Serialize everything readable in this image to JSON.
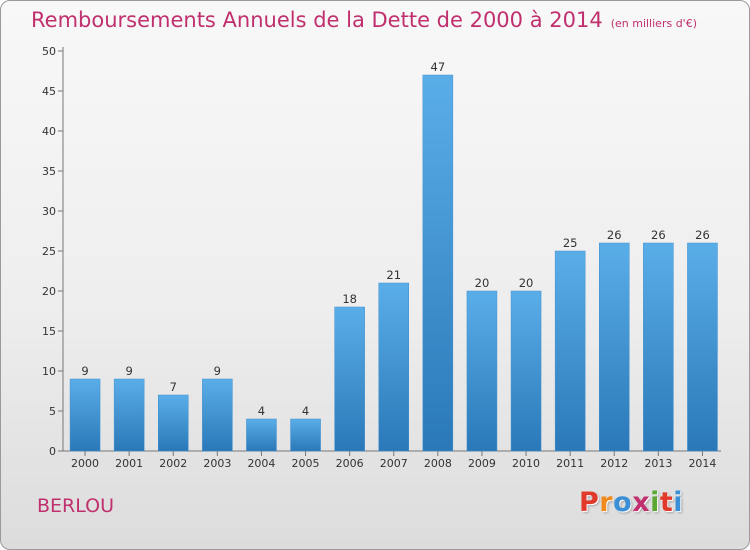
{
  "header": {
    "title": "Remboursements Annuels de la Dette de 2000 à 2014",
    "unit": "(en milliers d'€)"
  },
  "footer": {
    "commune": "BERLOU",
    "logo_text": "Proxiti"
  },
  "colors": {
    "title": "#c0306e",
    "bar_top": "#5aaee8",
    "bar_bottom": "#2a78b8",
    "logo": [
      "#e23a2a",
      "#f08a1c",
      "#3a8fd6",
      "#c0306e",
      "#5aa832",
      "#e23a2a",
      "#3a8fd6"
    ]
  },
  "chart_data": {
    "type": "bar",
    "title": "Remboursements Annuels de la Dette de 2000 à 2014",
    "xlabel": "",
    "ylabel": "",
    "categories": [
      "2000",
      "2001",
      "2002",
      "2003",
      "2004",
      "2005",
      "2006",
      "2007",
      "2008",
      "2009",
      "2010",
      "2011",
      "2012",
      "2013",
      "2014"
    ],
    "values": [
      9,
      9,
      7,
      9,
      4,
      4,
      18,
      21,
      47,
      20,
      20,
      25,
      26,
      26,
      26
    ],
    "ylim": [
      0,
      50
    ],
    "yticks": [
      0,
      5,
      10,
      15,
      20,
      25,
      30,
      35,
      40,
      45,
      50
    ],
    "grid": false,
    "data_labels": true
  }
}
